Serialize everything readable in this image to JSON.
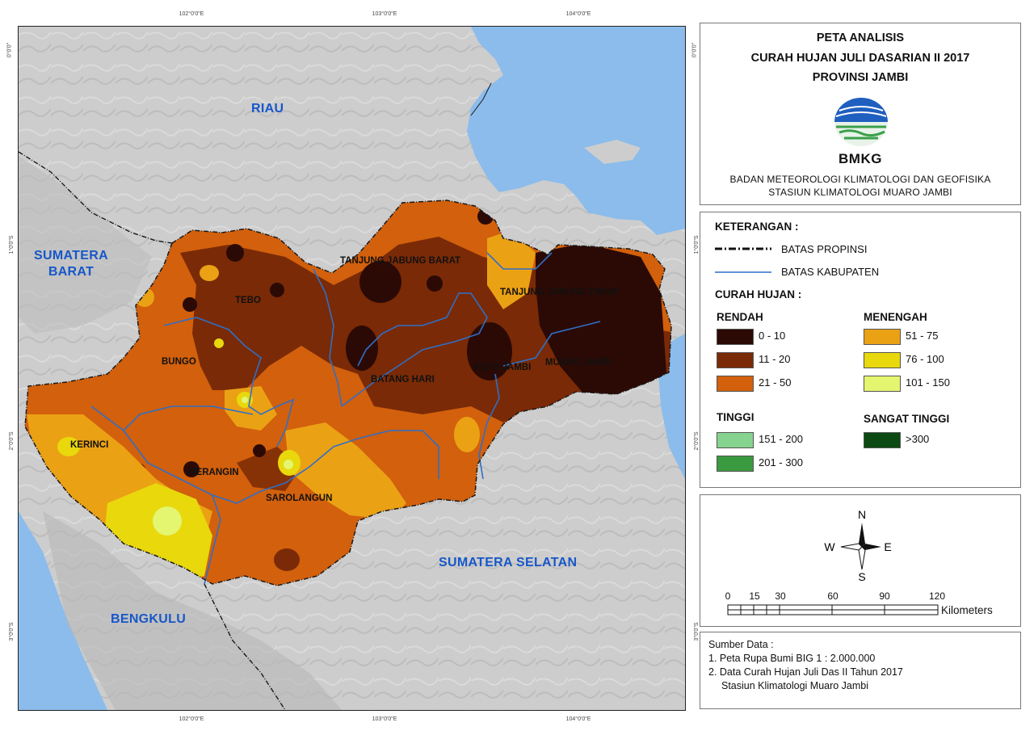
{
  "map": {
    "regions": {
      "riau": "RIAU",
      "sumbar": "SUMATERA\nBARAT",
      "sumsel": "SUMATERA SELATAN",
      "bengkulu": "BENGKULU"
    },
    "districts": {
      "tanjabbar": "TANJUNG JABUNG BARAT",
      "tanjabtim": "TANJUNG JABUNG TIMUR",
      "tebo": "TEBO",
      "bungo": "BUNGO",
      "kotajambi": "KOTA JAMBI",
      "muarojambi": "MUARO JAMBI",
      "batanghari": "BATANG HARI",
      "kerinci": "KERINCI",
      "merangin": "MERANGIN",
      "sarolangun": "SAROLANGUN"
    },
    "ticks": {
      "top": [
        "102°0'0\"E",
        "103°0'0\"E",
        "104°0'0\"E"
      ],
      "bottom": [
        "102°0'0\"E",
        "103°0'0\"E",
        "104°0'0\"E"
      ],
      "left": [
        "0°0'0\"",
        "1°0'0\"S",
        "2°0'0\"S",
        "3°0'0\"S"
      ],
      "right": [
        "0°0'0\"",
        "1°0'0\"S",
        "2°0'0\"S",
        "3°0'0\"S"
      ]
    }
  },
  "title": {
    "line1": "PETA ANALISIS",
    "line2": "CURAH HUJAN JULI DASARIAN II 2017",
    "line3": "PROVINSI JAMBI",
    "logo_text": "BMKG",
    "agency1": "BADAN METEOROLOGI KLIMATOLOGI DAN GEOFISIKA",
    "agency2": "STASIUN KLIMATOLOGI MUARO JAMBI"
  },
  "legend": {
    "heading": "KETERANGAN :",
    "batas_propinsi": "BATAS PROPINSI",
    "batas_kabupaten": "BATAS KABUPATEN",
    "curah_hujan": "CURAH HUJAN :",
    "groups": {
      "rendah": "RENDAH",
      "menengah": "MENENGAH",
      "tinggi": "TINGGI",
      "sangat_tinggi": "SANGAT TINGGI"
    },
    "classes": [
      {
        "label": "0 - 10",
        "color": "#2b0a05"
      },
      {
        "label": "11 - 20",
        "color": "#7a2a06"
      },
      {
        "label": "21 - 50",
        "color": "#d2600c"
      },
      {
        "label": "51 - 75",
        "color": "#eba114"
      },
      {
        "label": "76 - 100",
        "color": "#e8d80c"
      },
      {
        "label": "101 - 150",
        "color": "#e4f570"
      },
      {
        "label": "151 - 200",
        "color": "#86d38f"
      },
      {
        "label": "201 - 300",
        "color": "#3a9a40"
      },
      {
        "label": ">300",
        "color": "#0b4a12"
      }
    ]
  },
  "compass": {
    "n": "N",
    "s": "S",
    "e": "E",
    "w": "W"
  },
  "scale": {
    "ticks": [
      "0",
      "15",
      "30",
      "60",
      "90",
      "120"
    ],
    "unit": "Kilometers"
  },
  "source": {
    "heading": "Sumber Data :",
    "line1": "1. Peta Rupa Bumi BIG 1 : 2.000.000",
    "line2": "2. Data Curah Hujan Juli Das II Tahun 2017",
    "line3": "Stasiun Klimatologi Muaro Jambi"
  },
  "colors": {
    "sea": "#8bbcec",
    "land": "#cfcfcf",
    "province_boundary": "#1a1a1a",
    "district_boundary": "#2f6fc7"
  }
}
